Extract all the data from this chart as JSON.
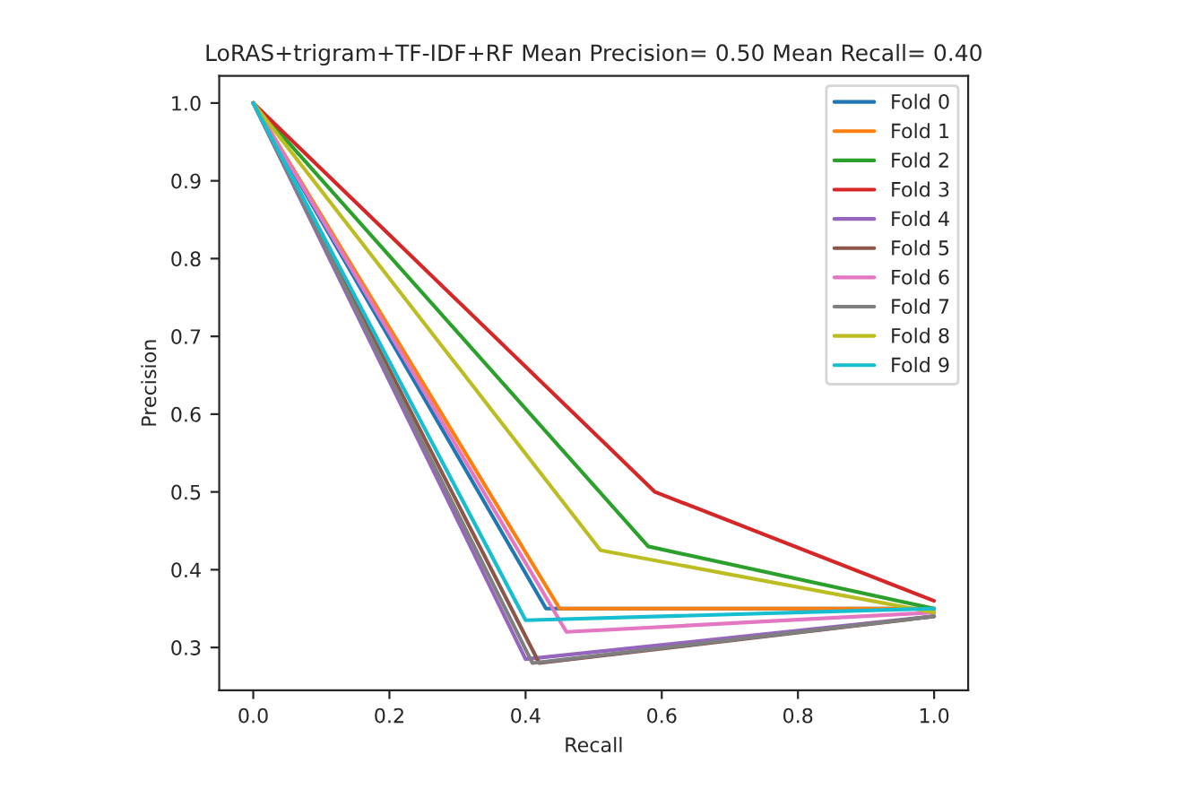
{
  "chart_data": {
    "type": "line",
    "title": "LoRAS+trigram+TF-IDF+RF Mean Precision= 0.50 Mean Recall= 0.40",
    "xlabel": "Recall",
    "ylabel": "Precision",
    "series": [
      {
        "name": "Fold 0",
        "color": "#1f77b4",
        "x": [
          0.0,
          0.43,
          1.0
        ],
        "values": [
          1.0,
          0.35,
          0.35
        ]
      },
      {
        "name": "Fold 1",
        "color": "#ff7f0e",
        "x": [
          0.0,
          0.45,
          1.0
        ],
        "values": [
          1.0,
          0.35,
          0.35
        ]
      },
      {
        "name": "Fold 2",
        "color": "#2ca02c",
        "x": [
          0.0,
          0.58,
          1.0
        ],
        "values": [
          1.0,
          0.43,
          0.35
        ]
      },
      {
        "name": "Fold 3",
        "color": "#d62728",
        "x": [
          0.0,
          0.59,
          1.0
        ],
        "values": [
          1.0,
          0.5,
          0.36
        ]
      },
      {
        "name": "Fold 4",
        "color": "#9467bd",
        "x": [
          0.0,
          0.4,
          1.0
        ],
        "values": [
          1.0,
          0.285,
          0.34
        ]
      },
      {
        "name": "Fold 5",
        "color": "#8c564b",
        "x": [
          0.0,
          0.42,
          1.0
        ],
        "values": [
          1.0,
          0.28,
          0.34
        ]
      },
      {
        "name": "Fold 6",
        "color": "#e377c2",
        "x": [
          0.0,
          0.46,
          1.0
        ],
        "values": [
          1.0,
          0.32,
          0.345
        ]
      },
      {
        "name": "Fold 7",
        "color": "#7f7f7f",
        "x": [
          0.0,
          0.41,
          1.0
        ],
        "values": [
          1.0,
          0.28,
          0.34
        ]
      },
      {
        "name": "Fold 8",
        "color": "#bcbd22",
        "x": [
          0.0,
          0.51,
          1.0
        ],
        "values": [
          1.0,
          0.425,
          0.345
        ]
      },
      {
        "name": "Fold 9",
        "color": "#17becf",
        "x": [
          0.0,
          0.4,
          1.0
        ],
        "values": [
          1.0,
          0.335,
          0.35
        ]
      }
    ],
    "xlim": [
      -0.05,
      1.05
    ],
    "ylim": [
      0.245,
      1.035
    ],
    "xticks": [
      {
        "value": 0.0,
        "label": "0.0"
      },
      0.2,
      0.4,
      0.6,
      0.8,
      {
        "value": 1.0,
        "label": "1.0"
      }
    ],
    "yticks": [
      0.3,
      0.4,
      0.5,
      0.6,
      0.7,
      0.8,
      0.9,
      {
        "value": 1.0,
        "label": "1.0"
      }
    ],
    "legend": "top right",
    "grid": false
  }
}
